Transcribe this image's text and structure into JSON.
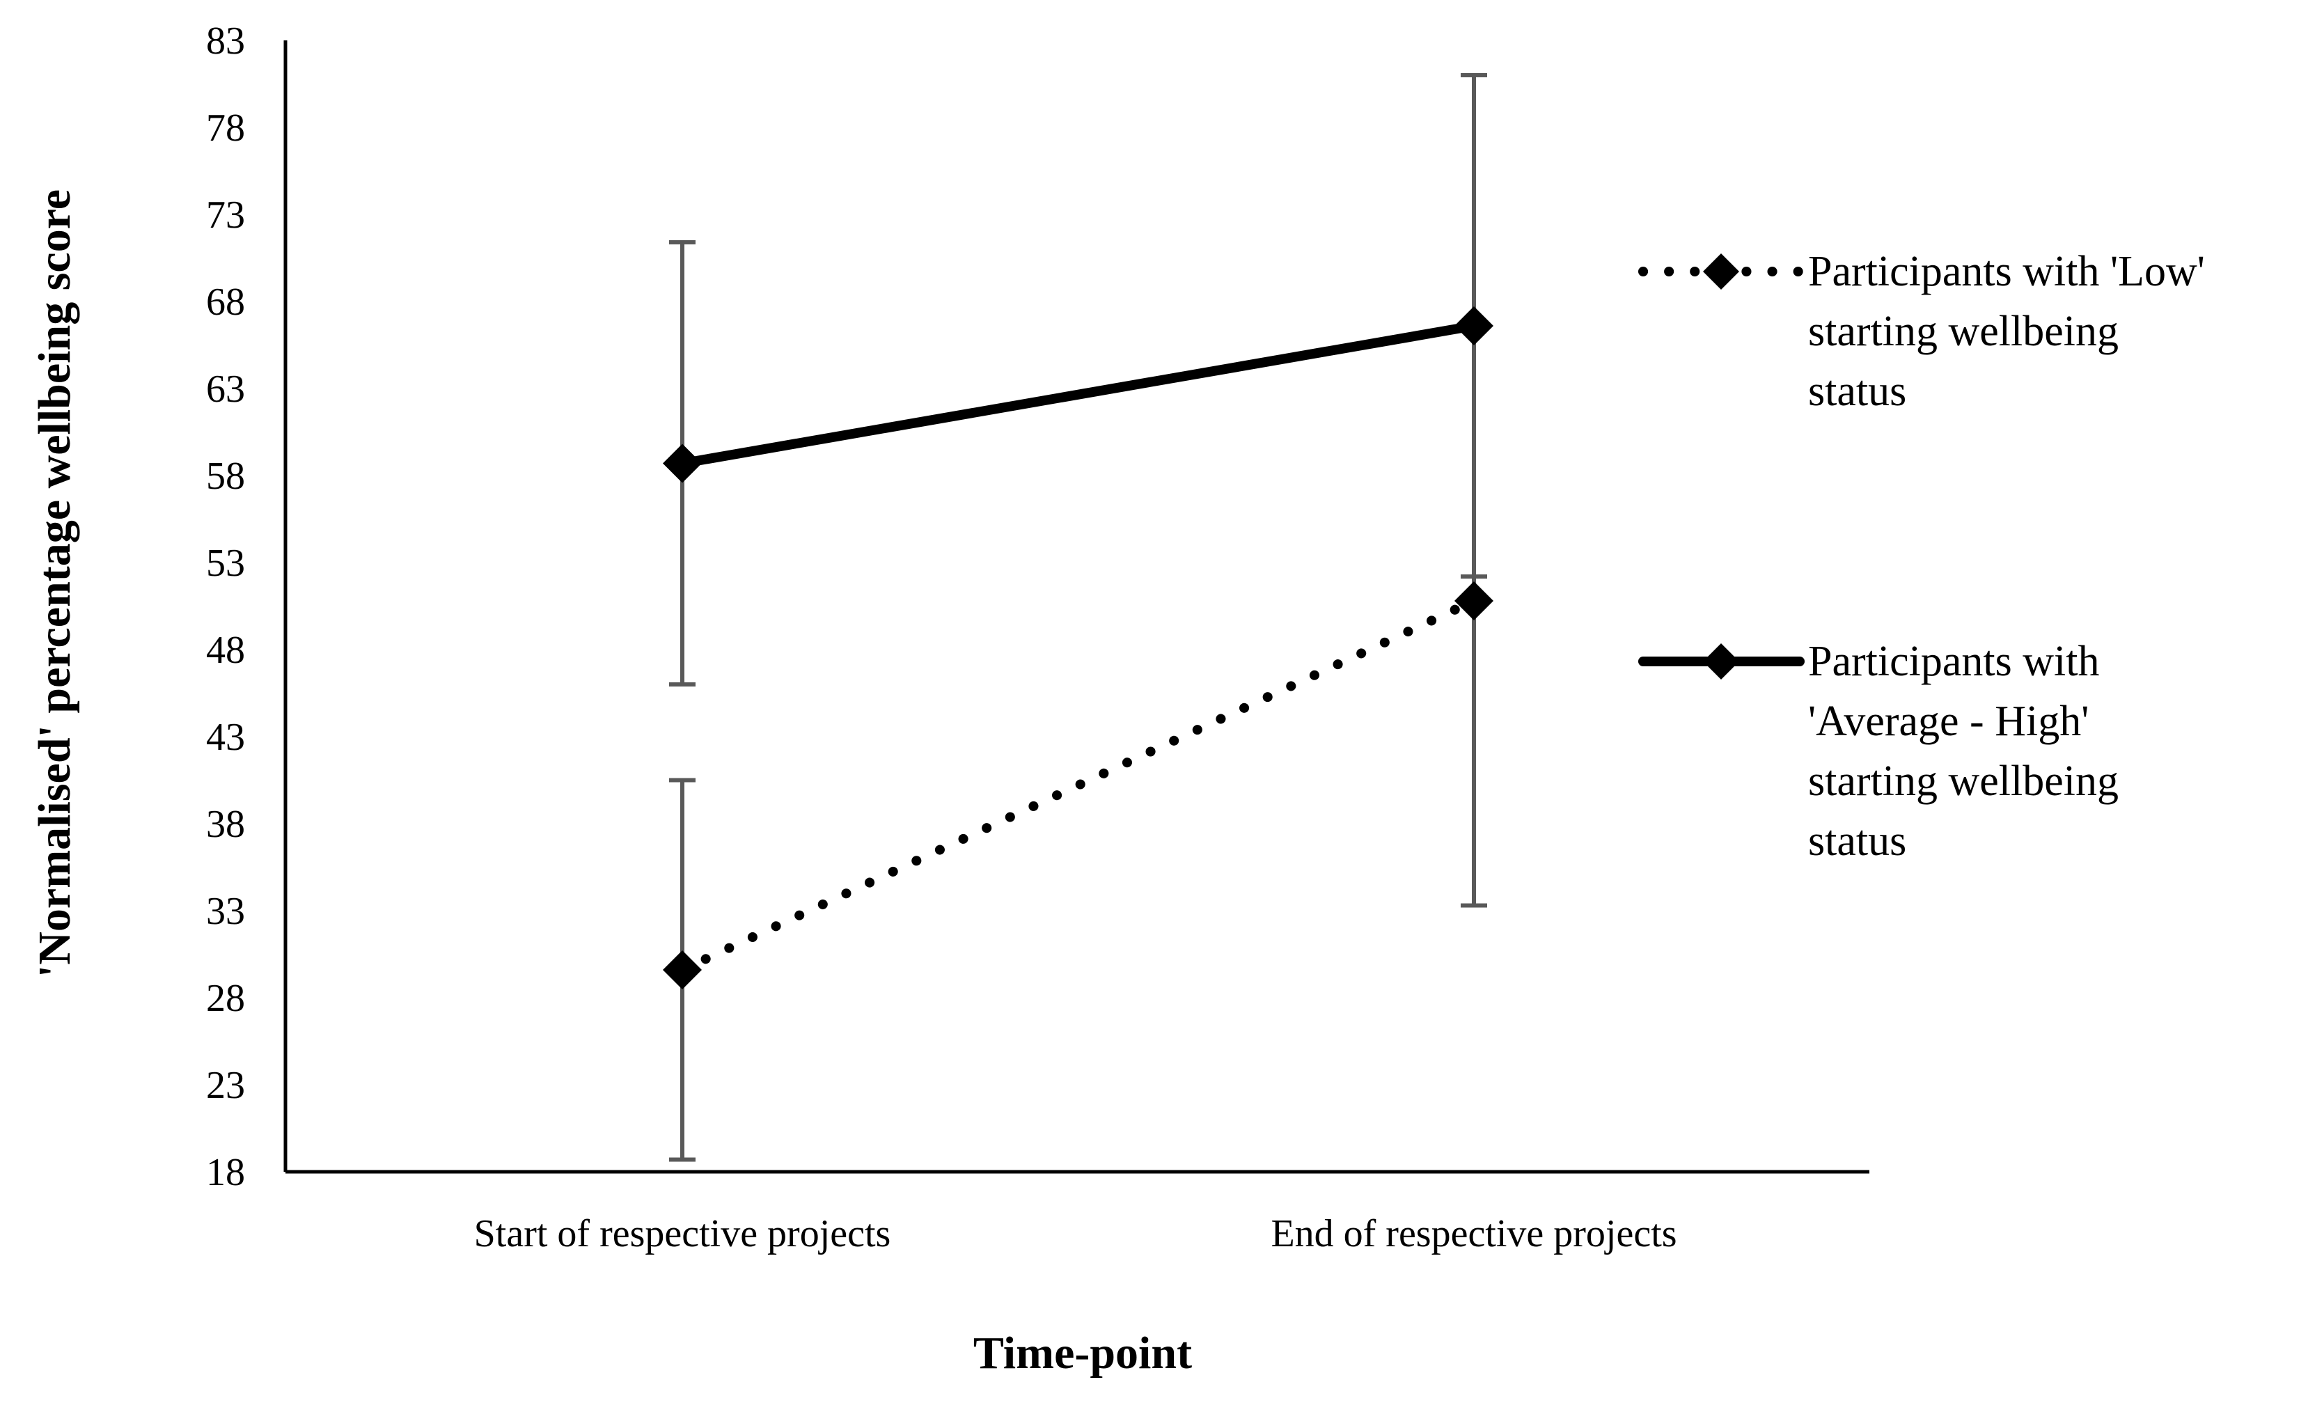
{
  "chart_data": {
    "type": "line",
    "categories": [
      "Start of respective projects",
      "End of respective projects"
    ],
    "xlabel": "Time-point",
    "ylabel": "'Normalised' percentage wellbeing score",
    "ylim": [
      18,
      83
    ],
    "yticks": [
      18,
      23,
      28,
      33,
      38,
      43,
      48,
      53,
      58,
      63,
      68,
      73,
      78,
      83
    ],
    "grid": false,
    "legend_position": "right",
    "series": [
      {
        "name": "Participants with 'Low' starting wellbeing status",
        "name_lines": [
          "Participants with 'Low'",
          "starting wellbeing",
          "status"
        ],
        "style": "dotted",
        "values": [
          29.6,
          50.8
        ],
        "error_low": [
          18.7,
          33.3
        ],
        "error_high": [
          40.5,
          52.2
        ]
      },
      {
        "name": "Participants with 'Average - High' starting wellbeing status",
        "name_lines": [
          "Participants with",
          "'Average - High'",
          "starting wellbeing",
          "status"
        ],
        "style": "solid",
        "values": [
          58.7,
          66.6
        ],
        "error_low": [
          46.0,
          52.2
        ],
        "error_high": [
          71.4,
          81.0
        ]
      }
    ],
    "colors": {
      "line": "#000000",
      "errorbar": "#595959",
      "axis": "#000000"
    }
  }
}
